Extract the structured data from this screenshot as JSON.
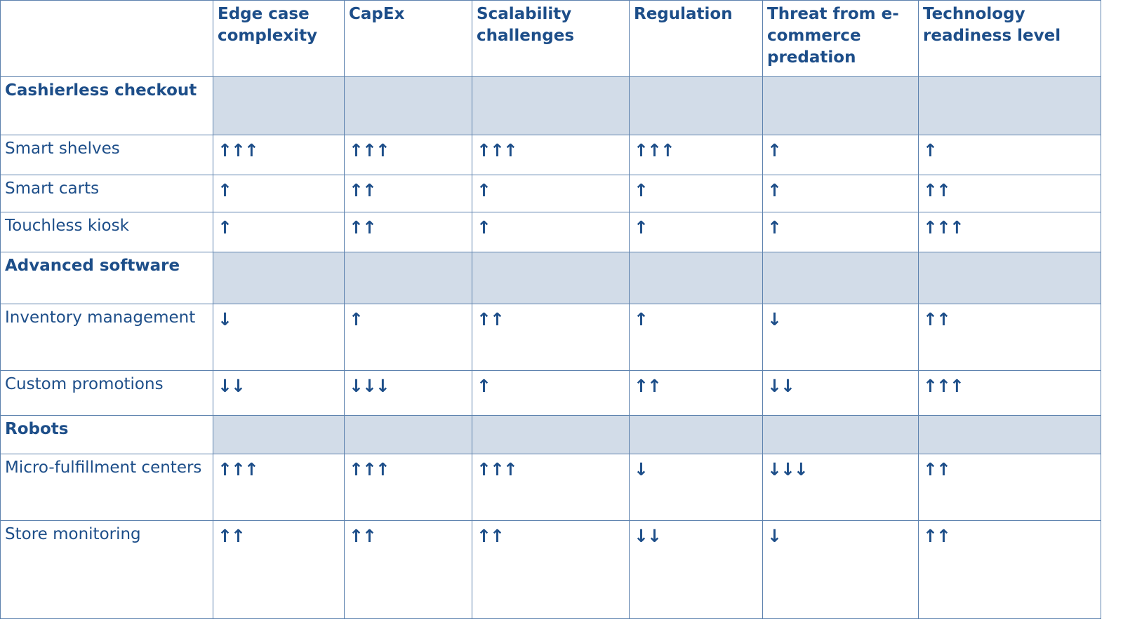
{
  "columns": [
    "",
    "Edge case complexity",
    "CapEx",
    "Scalability challenges",
    "Regulation",
    "Threat from e-commerce predation",
    "Technology readiness level"
  ],
  "rows": [
    {
      "kind": "group",
      "label": "Cashierless checkout",
      "cells": [
        "",
        "",
        "",
        "",
        "",
        ""
      ]
    },
    {
      "kind": "item",
      "label": "Smart shelves",
      "cells": [
        "↑↑↑",
        "↑↑↑",
        "↑↑↑",
        "↑↑↑",
        "↑",
        "↑"
      ]
    },
    {
      "kind": "item",
      "label": "Smart carts",
      "cells": [
        "↑",
        "↑↑",
        "↑",
        "↑",
        "↑",
        "↑↑"
      ]
    },
    {
      "kind": "item",
      "label": "Touchless kiosk",
      "cells": [
        "↑",
        "↑↑",
        "↑",
        "↑",
        "↑",
        "↑↑↑"
      ]
    },
    {
      "kind": "group",
      "label": "Advanced software",
      "cells": [
        "",
        "",
        "",
        "",
        "",
        ""
      ]
    },
    {
      "kind": "item",
      "label": "Inventory management",
      "cells": [
        "↓",
        "↑",
        "↑↑",
        "↑",
        "↓",
        "↑↑"
      ]
    },
    {
      "kind": "item",
      "label": "Custom promotions",
      "cells": [
        "↓↓",
        "↓↓↓",
        "↑",
        "↑↑",
        "↓↓",
        "↑↑↑"
      ]
    },
    {
      "kind": "group",
      "label": "Robots",
      "cells": [
        "",
        "",
        "",
        "",
        "",
        ""
      ]
    },
    {
      "kind": "item",
      "label": "Micro-fulfillment centers",
      "cells": [
        "↑↑↑",
        "↑↑↑",
        "↑↑↑",
        "↓",
        "↓↓↓",
        "↑↑"
      ]
    },
    {
      "kind": "item",
      "label": "Store monitoring",
      "cells": [
        "↑↑",
        "↑↑",
        "↑↑",
        "↓↓",
        "↓",
        "↑↑"
      ]
    }
  ],
  "colors": {
    "text": "#1d4e89",
    "border": "#5d82ae",
    "group_fill": "#d2dce8"
  }
}
